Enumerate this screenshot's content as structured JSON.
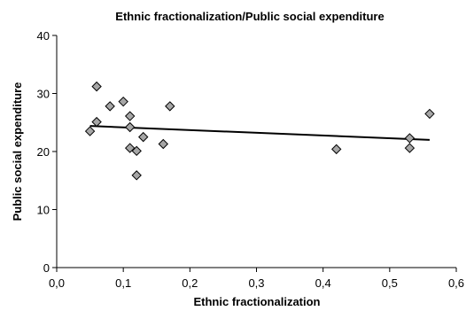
{
  "chart_data": {
    "type": "scatter",
    "title": "Ethnic fractionalization/Public social expenditure",
    "xlabel": "Ethnic fractionalization",
    "ylabel": "Public social expenditure",
    "xlim": [
      0.0,
      0.6
    ],
    "ylim": [
      0,
      40
    ],
    "x_ticks": [
      "0,0",
      "0,1",
      "0,2",
      "0,3",
      "0,4",
      "0,5",
      "0,6"
    ],
    "y_ticks": [
      "0",
      "10",
      "20",
      "30",
      "40"
    ],
    "grid": false,
    "legend": "none",
    "marker_color": "#a6a6a6",
    "trendline_color": "#000000",
    "points": [
      {
        "x": 0.05,
        "y": 23.5
      },
      {
        "x": 0.06,
        "y": 31.2
      },
      {
        "x": 0.06,
        "y": 25.1
      },
      {
        "x": 0.08,
        "y": 27.8
      },
      {
        "x": 0.1,
        "y": 28.6
      },
      {
        "x": 0.11,
        "y": 26.1
      },
      {
        "x": 0.11,
        "y": 24.2
      },
      {
        "x": 0.11,
        "y": 20.6
      },
      {
        "x": 0.12,
        "y": 20.1
      },
      {
        "x": 0.12,
        "y": 15.9
      },
      {
        "x": 0.13,
        "y": 22.5
      },
      {
        "x": 0.16,
        "y": 21.3
      },
      {
        "x": 0.17,
        "y": 27.8
      },
      {
        "x": 0.42,
        "y": 20.4
      },
      {
        "x": 0.53,
        "y": 22.3
      },
      {
        "x": 0.53,
        "y": 20.6
      },
      {
        "x": 0.56,
        "y": 26.5
      }
    ],
    "trendline": {
      "x": [
        0.05,
        0.56
      ],
      "y": [
        24.4,
        22.0
      ]
    }
  }
}
